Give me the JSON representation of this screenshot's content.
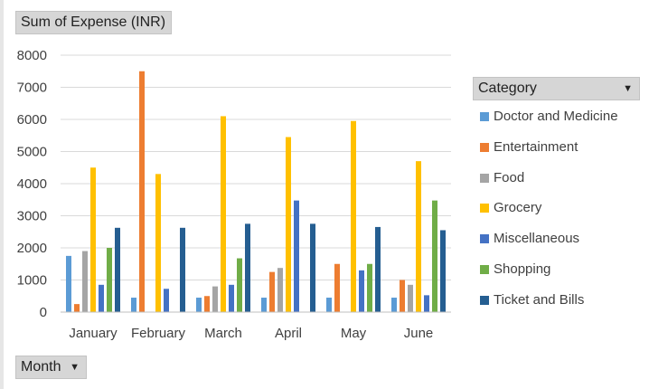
{
  "pivot": {
    "value_field": "Sum of Expense (INR)",
    "row_field": "Month",
    "column_field": "Category"
  },
  "chart_data": {
    "type": "bar",
    "categories": [
      "January",
      "February",
      "March",
      "April",
      "May",
      "June"
    ],
    "y_ticks": [
      "0",
      "1000",
      "2000",
      "3000",
      "4000",
      "5000",
      "6000",
      "7000",
      "8000"
    ],
    "ylim": [
      0,
      8000
    ],
    "grid": true,
    "legend_position": "right",
    "series": [
      {
        "name": "Doctor and Medicine",
        "color": "#5b9bd5",
        "values": [
          1750,
          450,
          450,
          450,
          450,
          450
        ]
      },
      {
        "name": "Entertainment",
        "color": "#ed7d31",
        "values": [
          250,
          7500,
          500,
          1250,
          1500,
          1000
        ]
      },
      {
        "name": "Food",
        "color": "#a5a5a5",
        "values": [
          1900,
          0,
          800,
          1375,
          0,
          850
        ]
      },
      {
        "name": "Grocery",
        "color": "#ffc000",
        "values": [
          4500,
          4300,
          6100,
          5450,
          5950,
          4700
        ]
      },
      {
        "name": "Miscellaneous",
        "color": "#4472c4",
        "values": [
          850,
          725,
          850,
          3475,
          1300,
          525
        ]
      },
      {
        "name": "Shopping",
        "color": "#70ad47",
        "values": [
          2000,
          0,
          1675,
          0,
          1500,
          3475
        ]
      },
      {
        "name": "Ticket and Bills",
        "color": "#255e91",
        "values": [
          2625,
          2625,
          2750,
          2750,
          2650,
          2550
        ]
      }
    ]
  }
}
